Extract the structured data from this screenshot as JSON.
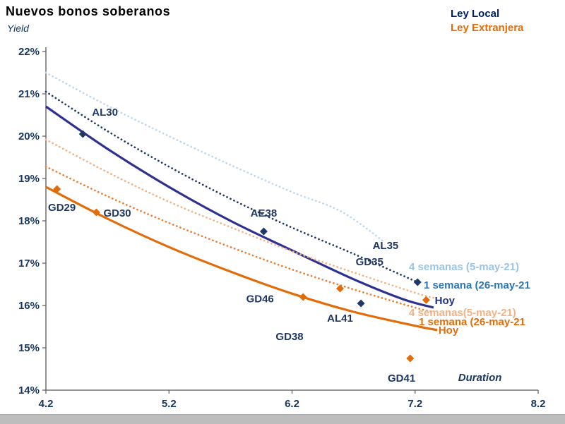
{
  "title": "Nuevos bonos soberanos",
  "y_axis_title": "Yield",
  "legend": {
    "local": "Ley Local",
    "extranjera": "Ley Extranjera"
  },
  "colors": {
    "local_dark": "#002060",
    "local_line": "#2E3192",
    "local_point": "#1F3864",
    "local_light": "#BDD7EE",
    "extranjera": "#E36C0A",
    "extranjera_mid": "#ED7D31",
    "extranjera_light": "#F4B183",
    "axis_text": "#17375E"
  },
  "chart_data": {
    "type": "line",
    "title": "Nuevos bonos soberanos",
    "xlabel": "Duration",
    "ylabel": "Yield",
    "xlim": [
      4.2,
      8.2
    ],
    "ylim": [
      14,
      22
    ],
    "xticks": [
      4.2,
      5.2,
      6.2,
      7.2,
      8.2
    ],
    "yticks": [
      14,
      15,
      16,
      17,
      18,
      19,
      20,
      21,
      22
    ],
    "ytick_suffix": "%",
    "grid": false,
    "legend_position": "top-right",
    "series_colors": {
      "local": "#1F3864",
      "extranjera": "#E36C0A"
    },
    "series": [
      {
        "name": "ley-local-4-semanas",
        "label": "4 semanas (5-may-21)",
        "color": "#BDD7EE",
        "style": "dotted",
        "points": [
          [
            4.2,
            21.5
          ],
          [
            4.7,
            20.72
          ],
          [
            5.2,
            20.0
          ],
          [
            5.7,
            19.32
          ],
          [
            6.2,
            18.68
          ],
          [
            6.6,
            18.22
          ],
          [
            6.95,
            17.5
          ]
        ]
      },
      {
        "name": "ley-local-1-semana",
        "label": "1 semana (26-may-21)",
        "color": "#1F3864",
        "style": "dotted",
        "points": [
          [
            4.2,
            21.05
          ],
          [
            4.7,
            20.12
          ],
          [
            5.2,
            19.28
          ],
          [
            5.7,
            18.52
          ],
          [
            6.2,
            17.84
          ],
          [
            6.7,
            17.22
          ],
          [
            7.22,
            16.55
          ]
        ]
      },
      {
        "name": "ley-local-hoy",
        "label": "Hoy",
        "color": "#2E3192",
        "style": "solid",
        "points": [
          [
            4.2,
            20.7
          ],
          [
            4.7,
            19.7
          ],
          [
            5.2,
            18.8
          ],
          [
            5.7,
            18.0
          ],
          [
            6.2,
            17.3
          ],
          [
            6.7,
            16.62
          ],
          [
            7.1,
            16.15
          ],
          [
            7.35,
            15.95
          ]
        ]
      },
      {
        "name": "ley-extranjera-4-semanas",
        "label": "4 semanas(5-may-21)",
        "color": "#F4B183",
        "style": "dotted",
        "points": [
          [
            4.2,
            19.92
          ],
          [
            4.7,
            19.15
          ],
          [
            5.2,
            18.45
          ],
          [
            5.7,
            17.85
          ],
          [
            6.2,
            17.28
          ],
          [
            6.7,
            16.78
          ],
          [
            7.2,
            16.3
          ],
          [
            7.35,
            16.18
          ]
        ]
      },
      {
        "name": "ley-extranjera-1-semana",
        "label": "1 semana (26-may-21)",
        "color": "#ED7D31",
        "style": "dotted",
        "points": [
          [
            4.2,
            19.28
          ],
          [
            4.7,
            18.58
          ],
          [
            5.2,
            17.95
          ],
          [
            5.7,
            17.38
          ],
          [
            6.2,
            16.85
          ],
          [
            6.7,
            16.38
          ],
          [
            7.2,
            15.95
          ],
          [
            7.35,
            15.85
          ]
        ]
      },
      {
        "name": "ley-extranjera-hoy",
        "label": "Hoy",
        "color": "#E36C0A",
        "style": "solid",
        "points": [
          [
            4.2,
            18.8
          ],
          [
            4.7,
            18.05
          ],
          [
            5.2,
            17.38
          ],
          [
            5.7,
            16.8
          ],
          [
            6.2,
            16.28
          ],
          [
            6.7,
            15.85
          ],
          [
            7.2,
            15.52
          ],
          [
            7.38,
            15.42
          ]
        ]
      }
    ],
    "points": [
      {
        "name": "AL30",
        "x": 4.5,
        "y": 20.05,
        "series": "local"
      },
      {
        "name": "AE38",
        "x": 5.97,
        "y": 17.75,
        "series": "local"
      },
      {
        "name": "AL41",
        "x": 6.76,
        "y": 16.05,
        "series": "local"
      },
      {
        "name": "marker-1-semana-local",
        "x": 7.22,
        "y": 16.55,
        "series": "local"
      },
      {
        "name": "GD29",
        "x": 4.29,
        "y": 18.75,
        "series": "extranjera"
      },
      {
        "name": "GD30",
        "x": 4.61,
        "y": 18.2,
        "series": "extranjera"
      },
      {
        "name": "GD46",
        "x": 6.29,
        "y": 16.2,
        "series": "extranjera"
      },
      {
        "name": "GD35",
        "x": 6.59,
        "y": 16.4,
        "series": "extranjera"
      },
      {
        "name": "GD41",
        "x": 7.16,
        "y": 14.75,
        "series": "extranjera"
      },
      {
        "name": "marker-hoy-local",
        "x": 7.29,
        "y": 16.13,
        "series": "extranjera"
      }
    ],
    "point_labels": [
      {
        "text": "AL30",
        "x": 4.68,
        "y": 20.57
      },
      {
        "text": "GD29",
        "x": 4.33,
        "y": 18.32
      },
      {
        "text": "GD30",
        "x": 4.78,
        "y": 18.18
      },
      {
        "text": "AE38",
        "x": 5.97,
        "y": 18.18
      },
      {
        "text": "AL35",
        "x": 6.96,
        "y": 17.42
      },
      {
        "text": "GD35",
        "x": 6.83,
        "y": 17.03
      },
      {
        "text": "GD46",
        "x": 5.94,
        "y": 16.16
      },
      {
        "text": "AL41",
        "x": 6.59,
        "y": 15.7
      },
      {
        "text": "GD38",
        "x": 6.18,
        "y": 15.27
      },
      {
        "text": "GD41",
        "x": 7.09,
        "y": 14.28
      }
    ],
    "annotations": [
      {
        "text": "4 semanas (5-may-21)",
        "x": 7.15,
        "y": 16.92,
        "color": "#9DC3E6",
        "size": 15
      },
      {
        "text": "1 semana (26-may-21",
        "x": 7.27,
        "y": 16.48,
        "color": "#2E75B6",
        "size": 15
      },
      {
        "text": "Hoy",
        "x": 7.36,
        "y": 16.12,
        "color": "#1F3280",
        "size": 15
      },
      {
        "text": "4 semanas(5-may-21)",
        "x": 7.15,
        "y": 15.83,
        "color": "#F4B183",
        "size": 15
      },
      {
        "text": "1 semana (26-may-21",
        "x": 7.23,
        "y": 15.62,
        "color": "#E36C0A",
        "size": 15
      },
      {
        "text": "Hoy",
        "x": 7.39,
        "y": 15.42,
        "color": "#E36C0A",
        "size": 15
      },
      {
        "text": "Duration",
        "x": 7.55,
        "y": 14.3,
        "color": "#17375E",
        "size": 15,
        "italic": true
      }
    ]
  }
}
